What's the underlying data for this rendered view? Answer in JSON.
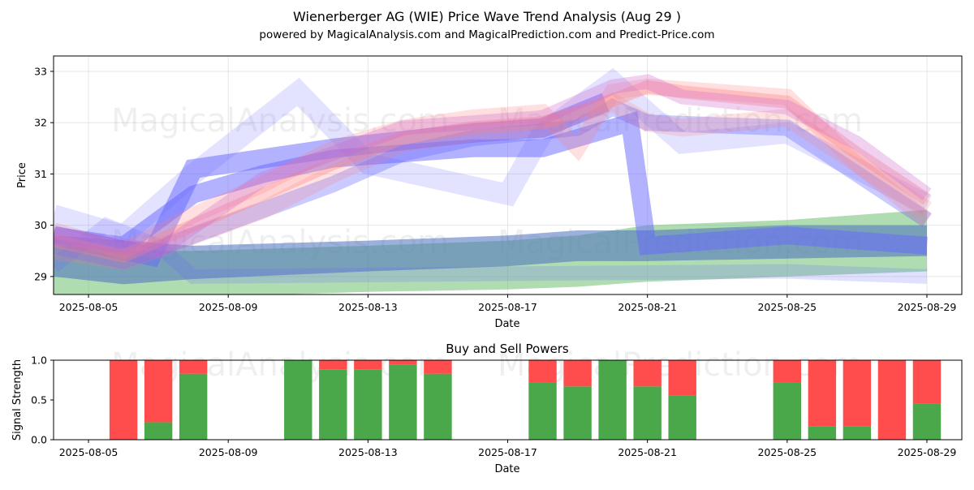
{
  "figure": {
    "title": "Wienerberger AG (WIE) Price Wave Trend Analysis (Aug 29 )",
    "subtitle": "powered by MagicalAnalysis.com and MagicalPrediction.com and Predict-Price.com",
    "watermarks": [
      "MagicalAnalysis.com",
      "MagicalPrediction.com"
    ],
    "colors": {
      "buy": "#4aa84a",
      "sell": "#ff4d4d",
      "wave_blue": "#6666ff",
      "wave_red": "#ff8080",
      "band_green": "#6fbf73",
      "band_blue": "#4a6fbf"
    }
  },
  "chart_data": [
    {
      "type": "area",
      "title": "",
      "xlabel": "Date",
      "ylabel": "Price",
      "ylim": [
        28.65,
        33.3
      ],
      "xlim": [
        "2025-08-04",
        "2025-08-30"
      ],
      "grid": true,
      "x_ticks": [
        "2025-08-05",
        "2025-08-09",
        "2025-08-13",
        "2025-08-17",
        "2025-08-21",
        "2025-08-25",
        "2025-08-29"
      ],
      "y_ticks": [
        29,
        30,
        31,
        32,
        33
      ],
      "bands": [
        {
          "name": "",
          "color": "#6fbf73",
          "x": [
            "2025-08-04",
            "2025-08-06",
            "2025-08-08",
            "2025-08-13",
            "2025-08-17",
            "2025-08-19",
            "2025-08-21",
            "2025-08-25",
            "2025-08-29"
          ],
          "low": [
            28.6,
            28.6,
            28.6,
            28.7,
            28.75,
            28.8,
            28.9,
            29.0,
            29.1
          ],
          "high": [
            29.6,
            29.5,
            29.5,
            29.6,
            29.7,
            29.8,
            30.0,
            30.1,
            30.3
          ]
        },
        {
          "name": "",
          "color": "#4a6fbf",
          "x": [
            "2025-08-04",
            "2025-08-06",
            "2025-08-08",
            "2025-08-13",
            "2025-08-17",
            "2025-08-19",
            "2025-08-21",
            "2025-08-25",
            "2025-08-29"
          ],
          "low": [
            29.0,
            28.85,
            28.95,
            29.1,
            29.2,
            29.3,
            29.3,
            29.35,
            29.4
          ],
          "high": [
            29.8,
            29.7,
            29.6,
            29.7,
            29.8,
            29.9,
            29.9,
            30.0,
            30.0
          ]
        }
      ],
      "series": [
        {
          "name": "",
          "color": "#6666ff",
          "width": 22,
          "opacity": 0.5,
          "x": [
            "2025-08-04",
            "2025-08-06",
            "2025-08-08",
            "2025-08-10",
            "2025-08-12",
            "2025-08-14",
            "2025-08-16",
            "2025-08-18",
            "2025-08-19.5",
            "2025-08-20.5",
            "2025-08-21",
            "2025-08-25",
            "2025-08-29"
          ],
          "y": [
            29.8,
            29.6,
            30.6,
            31.0,
            31.3,
            31.4,
            31.5,
            31.5,
            31.8,
            32.0,
            29.6,
            29.8,
            29.6
          ]
        },
        {
          "name": "",
          "color": "#6666ff",
          "width": 24,
          "opacity": 0.5,
          "x": [
            "2025-08-04",
            "2025-08-06.8",
            "2025-08-08",
            "2025-08-12",
            "2025-08-16",
            "2025-08-18",
            "2025-08-19.8"
          ],
          "y": [
            29.8,
            29.4,
            31.1,
            31.5,
            31.8,
            31.9,
            32.4
          ]
        },
        {
          "name": "",
          "color": "#6666ff",
          "width": 20,
          "opacity": 0.35,
          "x": [
            "2025-08-04",
            "2025-08-06",
            "2025-08-08",
            "2025-08-10",
            "2025-08-12",
            "2025-08-14",
            "2025-08-16",
            "2025-08-17.5",
            "2025-08-19",
            "2025-08-20",
            "2025-08-21",
            "2025-08-25",
            "2025-08-29"
          ],
          "y": [
            29.6,
            29.3,
            29.8,
            30.3,
            30.8,
            31.4,
            31.7,
            31.8,
            31.9,
            32.3,
            32.0,
            31.9,
            30.1
          ]
        },
        {
          "name": "",
          "color": "#6666ff",
          "width": 26,
          "opacity": 0.18,
          "x": [
            "2025-08-04",
            "2025-08-06",
            "2025-08-08",
            "2025-08-11",
            "2025-08-13",
            "2025-08-17",
            "2025-08-18",
            "2025-08-20",
            "2025-08-22",
            "2025-08-25",
            "2025-08-29"
          ],
          "y": [
            30.2,
            29.8,
            31.0,
            32.6,
            31.2,
            30.6,
            31.8,
            32.8,
            31.6,
            31.8,
            30.4
          ]
        },
        {
          "name": "",
          "color": "#6666ff",
          "width": 18,
          "opacity": 0.2,
          "x": [
            "2025-08-04",
            "2025-08-05.5",
            "2025-08-07",
            "2025-08-08",
            "2025-08-25",
            "2025-08-29"
          ],
          "y": [
            29.2,
            30.0,
            29.6,
            29.0,
            29.1,
            29.0
          ]
        },
        {
          "name": "",
          "color": "#ff8080",
          "width": 16,
          "opacity": 0.35,
          "x": [
            "2025-08-04",
            "2025-08-06",
            "2025-08-08",
            "2025-08-10",
            "2025-08-12",
            "2025-08-14",
            "2025-08-16",
            "2025-08-18",
            "2025-08-19.5",
            "2025-08-21",
            "2025-08-22",
            "2025-08-25",
            "2025-08-27",
            "2025-08-29"
          ],
          "y": [
            29.7,
            29.4,
            30.0,
            30.6,
            31.2,
            31.7,
            31.9,
            32.0,
            32.3,
            32.7,
            32.6,
            32.4,
            31.4,
            30.5
          ]
        },
        {
          "name": "",
          "color": "#ff8080",
          "width": 20,
          "opacity": 0.25,
          "x": [
            "2025-08-04",
            "2025-08-06",
            "2025-08-08",
            "2025-08-10",
            "2025-08-12",
            "2025-08-14",
            "2025-08-16",
            "2025-08-18",
            "2025-08-19",
            "2025-08-20",
            "2025-08-21",
            "2025-08-25",
            "2025-08-27",
            "2025-08-29"
          ],
          "y": [
            29.9,
            29.5,
            30.2,
            30.8,
            31.5,
            31.9,
            32.1,
            32.2,
            31.5,
            32.6,
            32.7,
            32.5,
            31.2,
            30.1
          ]
        },
        {
          "name": "",
          "color": "#ff8080",
          "width": 22,
          "opacity": 0.22,
          "x": [
            "2025-08-04",
            "2025-08-06",
            "2025-08-08",
            "2025-08-10",
            "2025-08-12",
            "2025-08-14",
            "2025-08-16",
            "2025-08-18",
            "2025-08-20",
            "2025-08-21",
            "2025-08-22",
            "2025-08-25",
            "2025-08-27",
            "2025-08-29"
          ],
          "y": [
            29.5,
            29.3,
            29.8,
            30.3,
            31.0,
            31.6,
            31.8,
            31.9,
            32.4,
            32.0,
            31.9,
            32.1,
            31.2,
            30.3
          ]
        },
        {
          "name": "",
          "color": "#cc66cc",
          "width": 18,
          "opacity": 0.3,
          "x": [
            "2025-08-04",
            "2025-08-07",
            "2025-08-10",
            "2025-08-14",
            "2025-08-18",
            "2025-08-20",
            "2025-08-21",
            "2025-08-22",
            "2025-08-25",
            "2025-08-27",
            "2025-08-29"
          ],
          "y": [
            29.8,
            29.5,
            30.9,
            31.9,
            32.1,
            32.7,
            32.8,
            32.5,
            32.3,
            31.6,
            30.6
          ]
        }
      ]
    },
    {
      "type": "bar",
      "title": "Buy and Sell Powers",
      "xlabel": "Date",
      "ylabel": "Signal Strength",
      "ylim": [
        0,
        1.0
      ],
      "xlim": [
        "2025-08-04",
        "2025-08-30"
      ],
      "x_ticks": [
        "2025-08-05",
        "2025-08-09",
        "2025-08-13",
        "2025-08-17",
        "2025-08-21",
        "2025-08-25",
        "2025-08-29"
      ],
      "y_ticks": [
        "0.0",
        "0.5",
        "1.0"
      ],
      "categories": [
        "2025-08-06",
        "2025-08-07",
        "2025-08-08",
        "2025-08-11",
        "2025-08-12",
        "2025-08-13",
        "2025-08-14",
        "2025-08-15",
        "2025-08-18",
        "2025-08-19",
        "2025-08-20",
        "2025-08-21",
        "2025-08-22",
        "2025-08-25",
        "2025-08-26",
        "2025-08-27",
        "2025-08-28",
        "2025-08-29"
      ],
      "series": [
        {
          "name": "Buy",
          "color": "#4aa84a",
          "values": [
            0.0,
            0.22,
            0.83,
            1.0,
            0.88,
            0.88,
            0.94,
            0.83,
            0.72,
            0.67,
            1.0,
            0.67,
            0.56,
            0.72,
            0.17,
            0.17,
            0.0,
            0.45
          ]
        },
        {
          "name": "Sell",
          "color": "#ff4d4d",
          "values": [
            1.0,
            0.78,
            0.17,
            0.0,
            0.12,
            0.12,
            0.06,
            0.17,
            0.28,
            0.33,
            0.0,
            0.33,
            0.44,
            0.28,
            0.83,
            0.83,
            1.0,
            0.55
          ]
        }
      ]
    }
  ]
}
